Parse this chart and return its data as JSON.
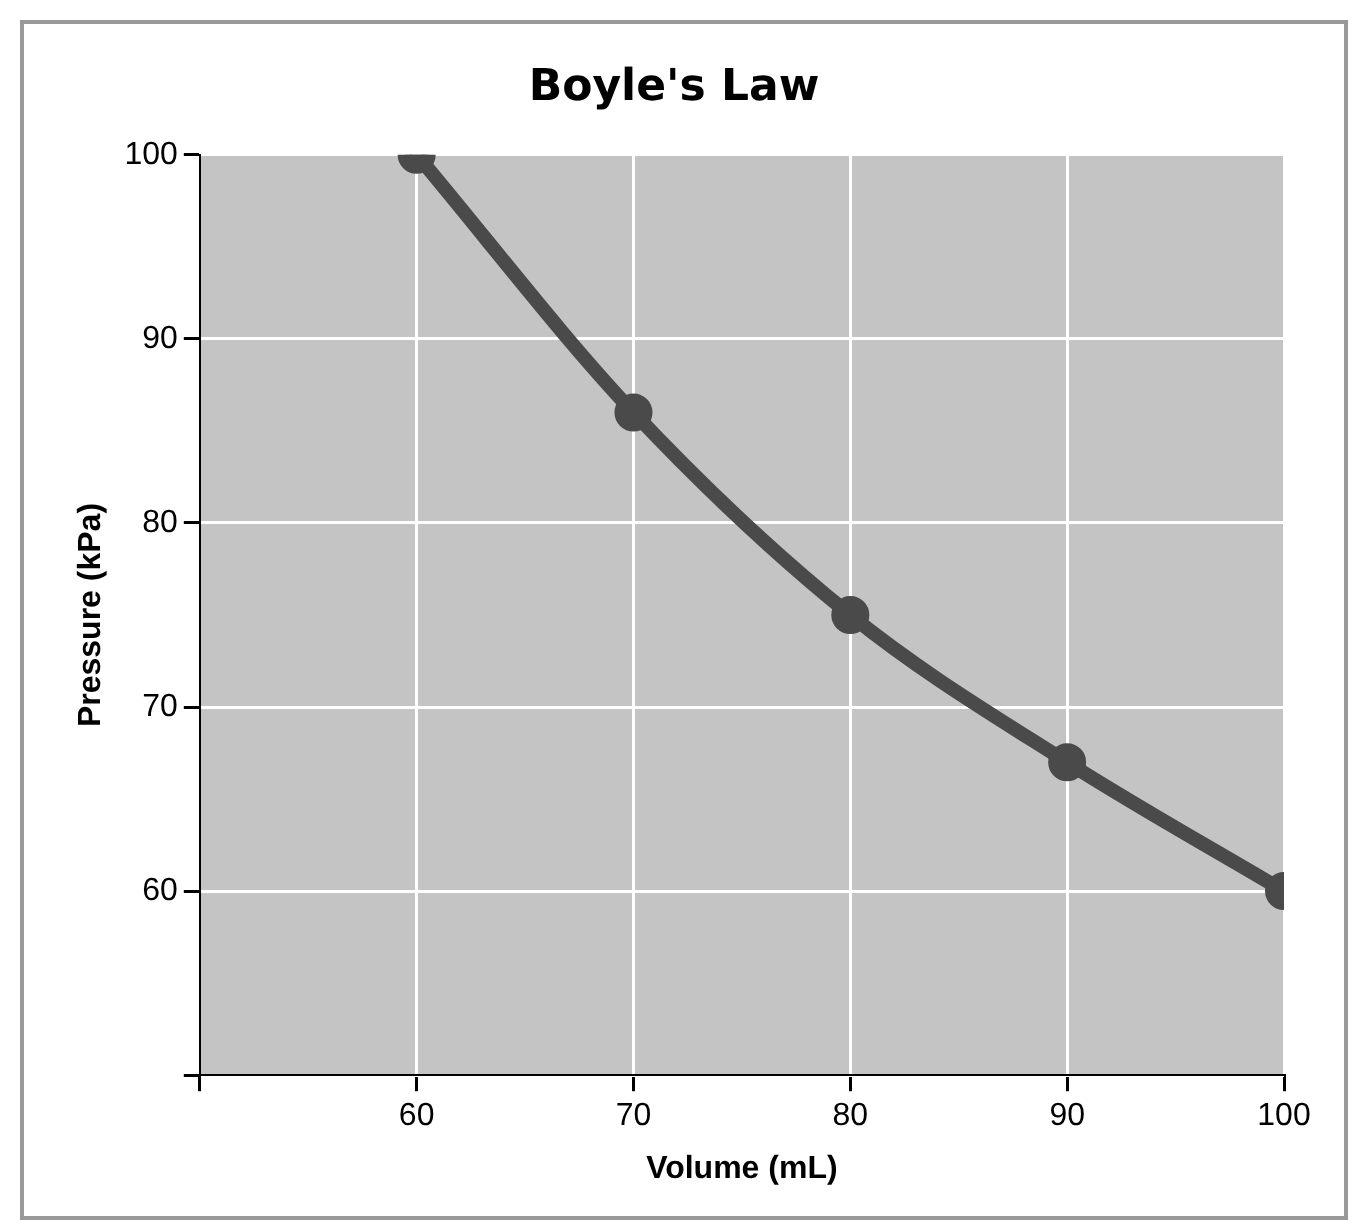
{
  "chart_data": {
    "type": "line",
    "title": "Boyle's Law",
    "xlabel": "Volume (mL)",
    "ylabel": "Pressure (kPa)",
    "x": [
      60,
      70,
      80,
      90,
      100
    ],
    "series": [
      {
        "color": "#4a4a4a",
        "values": [
          100,
          86,
          75,
          67,
          60
        ]
      }
    ],
    "xlim": [
      50,
      100
    ],
    "xticks": [
      {
        "value": 50,
        "label": null
      },
      60,
      70,
      80,
      90,
      100
    ],
    "ylim": [
      50,
      100
    ],
    "yticks": [
      {
        "value": 50,
        "label": null
      },
      60,
      70,
      80,
      90,
      100
    ],
    "grid": true,
    "marker": "circle",
    "line_style": "solid",
    "legend": false
  }
}
